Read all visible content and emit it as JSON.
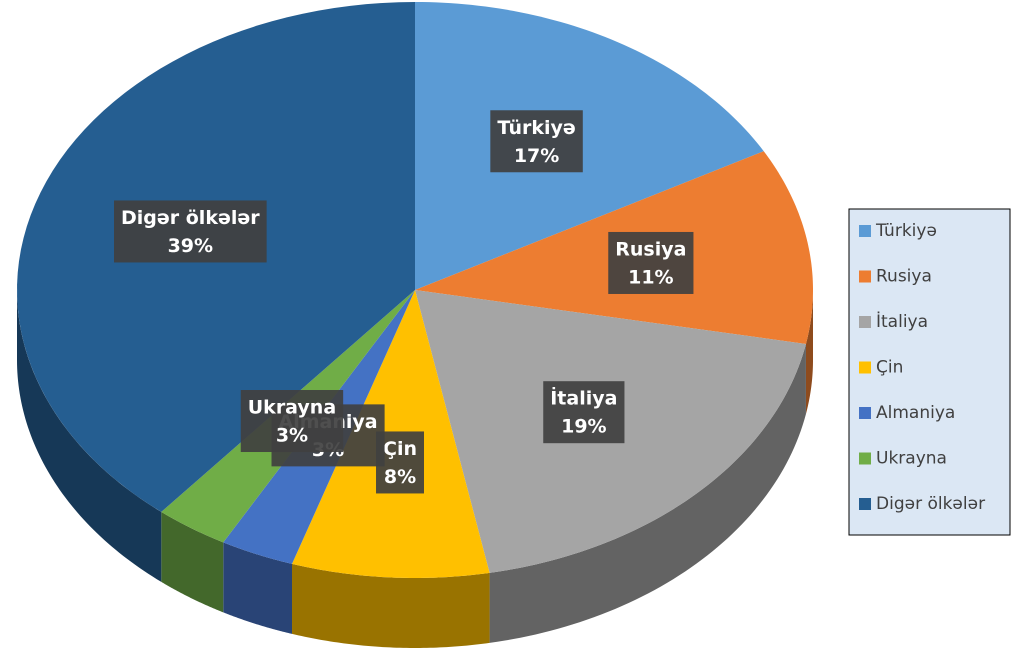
{
  "chart_data": {
    "type": "pie",
    "categories": [
      "Türkiyə",
      "Rusiya",
      "İtaliya",
      "Çin",
      "Almaniya",
      "Ukrayna",
      "Digər ölkələr"
    ],
    "values": [
      17,
      11,
      19,
      8,
      3,
      3,
      39
    ],
    "value_labels": [
      "17%",
      "11%",
      "19%",
      "8%",
      "3%",
      "3%",
      "39%"
    ],
    "colors": [
      "#5b9bd5",
      "#ed7d31",
      "#a5a5a5",
      "#ffc000",
      "#4472c4",
      "#70ad47",
      "#255e91"
    ],
    "legend": "right"
  }
}
